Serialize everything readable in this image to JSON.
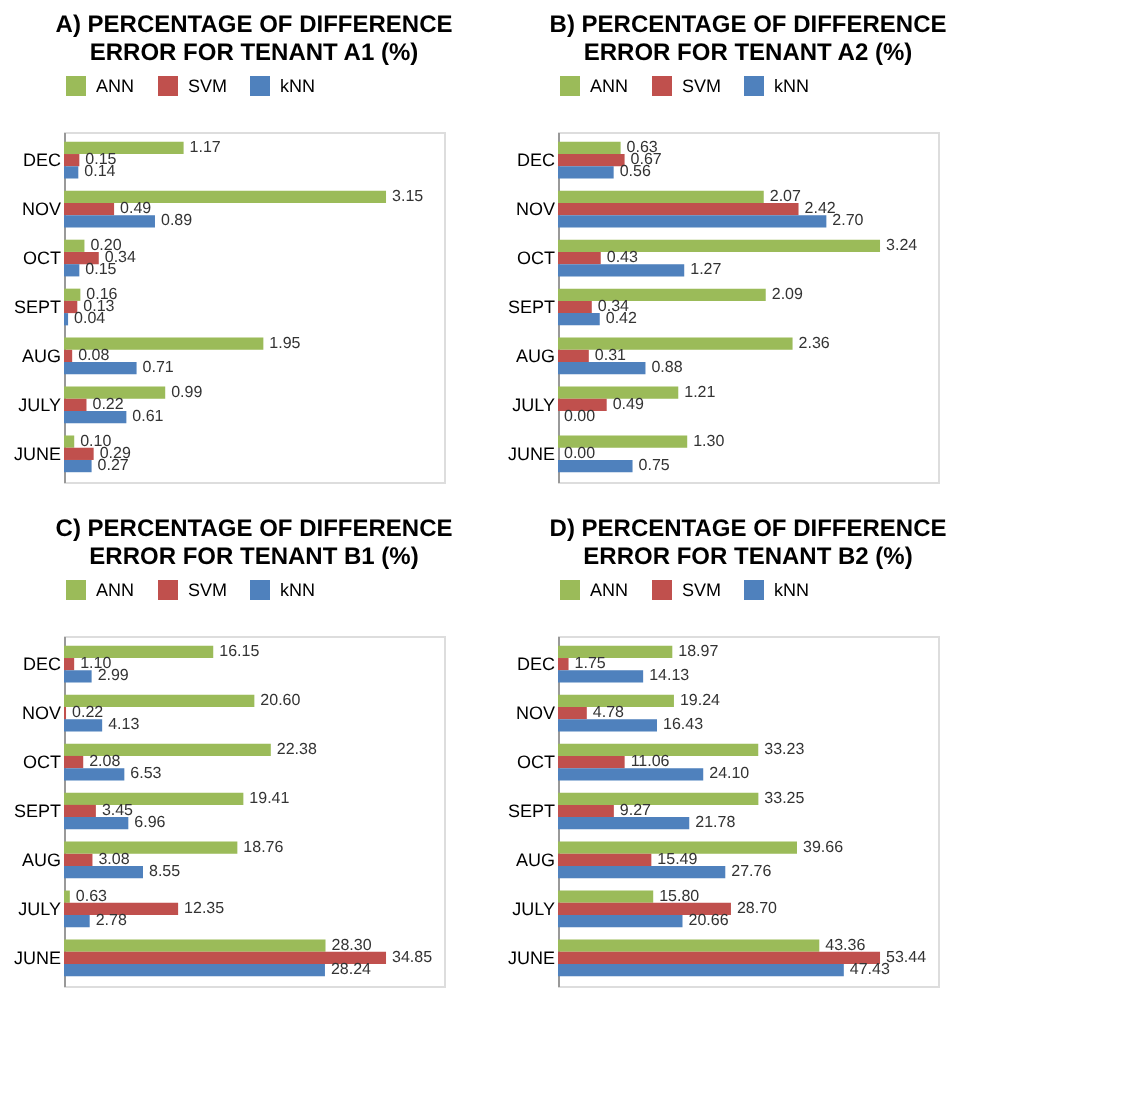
{
  "chart_data": [
    {
      "type": "bar",
      "orientation": "horizontal",
      "title": "A) PERCENTAGE OF DIFFERENCE ERROR FOR TENANT A1 (%)",
      "legend": "top",
      "grid": false,
      "categories": [
        "DEC",
        "NOV",
        "OCT",
        "SEPT",
        "AUG",
        "JULY",
        "JUNE"
      ],
      "series": [
        {
          "name": "ANN",
          "color": "#9bbb59",
          "values": [
            1.17,
            3.15,
            0.2,
            0.16,
            1.95,
            0.99,
            0.1
          ],
          "value_labels": [
            "1.17",
            "3.15",
            "0.20",
            "0.16",
            "1.95",
            "0.99",
            "0.10"
          ]
        },
        {
          "name": "SVM",
          "color": "#c0504d",
          "values": [
            0.15,
            0.49,
            0.34,
            0.13,
            0.08,
            0.22,
            0.29
          ],
          "value_labels": [
            "0.15",
            "0.49",
            "0.34",
            "0.13",
            "0.08",
            "0.22",
            "0.29"
          ]
        },
        {
          "name": "kNN",
          "color": "#4f81bd",
          "values": [
            0.14,
            0.89,
            0.15,
            0.04,
            0.71,
            0.61,
            0.27
          ],
          "value_labels": [
            "0.14",
            "0.89",
            "0.15",
            "0.04",
            "0.71",
            "0.61",
            "0.27"
          ]
        }
      ]
    },
    {
      "type": "bar",
      "orientation": "horizontal",
      "title": "B) PERCENTAGE OF DIFFERENCE ERROR FOR TENANT A2 (%)",
      "legend": "top",
      "grid": false,
      "categories": [
        "DEC",
        "NOV",
        "OCT",
        "SEPT",
        "AUG",
        "JULY",
        "JUNE"
      ],
      "series": [
        {
          "name": "ANN",
          "color": "#9bbb59",
          "values": [
            0.63,
            2.07,
            3.24,
            2.09,
            2.36,
            1.21,
            1.3
          ],
          "value_labels": [
            "0.63",
            "2.07",
            "3.24",
            "2.09",
            "2.36",
            "1.21",
            "1.30"
          ]
        },
        {
          "name": "SVM",
          "color": "#c0504d",
          "values": [
            0.67,
            2.42,
            0.43,
            0.34,
            0.31,
            0.49,
            0.0
          ],
          "value_labels": [
            "0.67",
            "2.42",
            "0.43",
            "0.34",
            "0.31",
            "0.49",
            "0.00"
          ]
        },
        {
          "name": "kNN",
          "color": "#4f81bd",
          "values": [
            0.56,
            2.7,
            1.27,
            0.42,
            0.88,
            0.0,
            0.75
          ],
          "value_labels": [
            "0.56",
            "2.70",
            "1.27",
            "0.42",
            "0.88",
            "0.00",
            "0.75"
          ]
        }
      ]
    },
    {
      "type": "bar",
      "orientation": "horizontal",
      "title": "C) PERCENTAGE OF DIFFERENCE ERROR FOR TENANT B1 (%)",
      "legend": "top",
      "grid": false,
      "categories": [
        "DEC",
        "NOV",
        "OCT",
        "SEPT",
        "AUG",
        "JULY",
        "JUNE"
      ],
      "series": [
        {
          "name": "ANN",
          "color": "#9bbb59",
          "values": [
            16.15,
            20.6,
            22.38,
            19.41,
            18.76,
            0.63,
            28.3
          ],
          "value_labels": [
            "16.15",
            "20.60",
            "22.38",
            "19.41",
            "18.76",
            "0.63",
            "28.30"
          ]
        },
        {
          "name": "SVM",
          "color": "#c0504d",
          "values": [
            1.1,
            0.22,
            2.08,
            3.45,
            3.08,
            12.35,
            34.85
          ],
          "value_labels": [
            "1.10",
            "0.22",
            "2.08",
            "3.45",
            "3.08",
            "12.35",
            "34.85"
          ]
        },
        {
          "name": "kNN",
          "color": "#4f81bd",
          "values": [
            2.99,
            4.13,
            6.53,
            6.96,
            8.55,
            2.78,
            28.24
          ],
          "value_labels": [
            "2.99",
            "4.13",
            "6.53",
            "6.96",
            "8.55",
            "2.78",
            "28.24"
          ]
        }
      ]
    },
    {
      "type": "bar",
      "orientation": "horizontal",
      "title": "D) PERCENTAGE OF DIFFERENCE ERROR FOR TENANT B2 (%)",
      "legend": "top",
      "grid": false,
      "categories": [
        "DEC",
        "NOV",
        "OCT",
        "SEPT",
        "AUG",
        "JULY",
        "JUNE"
      ],
      "series": [
        {
          "name": "ANN",
          "color": "#9bbb59",
          "values": [
            18.97,
            19.24,
            33.23,
            33.25,
            39.66,
            15.8,
            43.36
          ],
          "value_labels": [
            "18.97",
            "19.24",
            "33.23",
            "33.25",
            "39.66",
            "15.80",
            "43.36"
          ]
        },
        {
          "name": "SVM",
          "color": "#c0504d",
          "values": [
            1.75,
            4.78,
            11.06,
            9.27,
            15.49,
            28.7,
            53.44
          ],
          "value_labels": [
            "1.75",
            "4.78",
            "11.06",
            "9.27",
            "15.49",
            "28.70",
            "53.44"
          ]
        },
        {
          "name": "kNN",
          "color": "#4f81bd",
          "values": [
            14.13,
            16.43,
            24.1,
            21.78,
            27.76,
            20.66,
            47.43
          ],
          "value_labels": [
            "14.13",
            "16.43",
            "24.10",
            "21.78",
            "27.76",
            "20.66",
            "47.43"
          ]
        }
      ]
    }
  ]
}
